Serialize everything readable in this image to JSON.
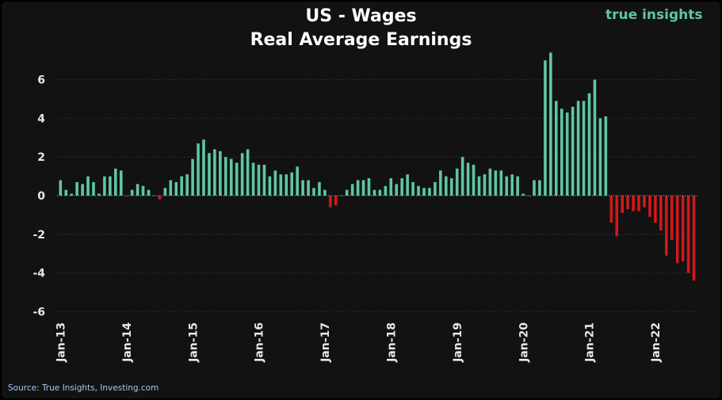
{
  "header": {
    "title_line1": "US - Wages",
    "title_line2": "Real Average Earnings",
    "brand_word1": "true",
    "brand_word2": "insights"
  },
  "footer": {
    "source": "Source: True Insights, Investing.com"
  },
  "colors": {
    "positive": "#5ec7a0",
    "negative": "#d0191b",
    "background": "#121212",
    "grid": "#2a2a2a",
    "text": "#e8e8e8"
  },
  "chart_data": {
    "type": "bar",
    "title": "US - Wages Real Average Earnings",
    "xlabel": "",
    "ylabel": "",
    "ylim": [
      -6,
      7.5
    ],
    "yticks": [
      -6,
      -4,
      -2,
      0,
      2,
      4,
      6
    ],
    "ytick_labels": [
      "-6",
      "-4",
      "-2",
      "0",
      "2",
      "4",
      "6"
    ],
    "xtick_labels": [
      "Jan-13",
      "Jan-14",
      "Jan-15",
      "Jan-16",
      "Jan-17",
      "Jan-18",
      "Jan-19",
      "Jan-20",
      "Jan-21",
      "Jan-22"
    ],
    "grid": true,
    "start": "Jan-13",
    "frequency": "monthly",
    "values": [
      0.8,
      0.3,
      0.1,
      0.7,
      0.6,
      1.0,
      0.7,
      0.1,
      1.0,
      1.0,
      1.4,
      1.3,
      0.0,
      0.3,
      0.6,
      0.5,
      0.3,
      0.0,
      -0.2,
      0.4,
      0.8,
      0.7,
      1.0,
      1.1,
      1.9,
      2.7,
      2.9,
      2.2,
      2.4,
      2.3,
      2.0,
      1.9,
      1.7,
      2.2,
      2.4,
      1.7,
      1.6,
      1.6,
      1.0,
      1.3,
      1.1,
      1.1,
      1.2,
      1.5,
      0.8,
      0.8,
      0.4,
      0.7,
      0.3,
      -0.6,
      -0.5,
      0.0,
      0.3,
      0.6,
      0.8,
      0.8,
      0.9,
      0.3,
      0.3,
      0.5,
      0.9,
      0.6,
      0.9,
      1.1,
      0.7,
      0.5,
      0.4,
      0.4,
      0.7,
      1.3,
      1.0,
      0.9,
      1.4,
      2.0,
      1.7,
      1.6,
      1.0,
      1.1,
      1.4,
      1.3,
      1.3,
      1.0,
      1.1,
      1.0,
      0.1,
      0.0,
      0.8,
      0.8,
      7.0,
      7.4,
      4.9,
      4.5,
      4.3,
      4.6,
      4.9,
      4.9,
      5.3,
      6.0,
      4.0,
      4.1,
      -1.4,
      -2.1,
      -0.9,
      -0.7,
      -0.8,
      -0.8,
      -0.6,
      -1.1,
      -1.4,
      -1.8,
      -3.1,
      -2.3,
      -3.5,
      -3.4,
      -4.0,
      -4.4
    ]
  }
}
